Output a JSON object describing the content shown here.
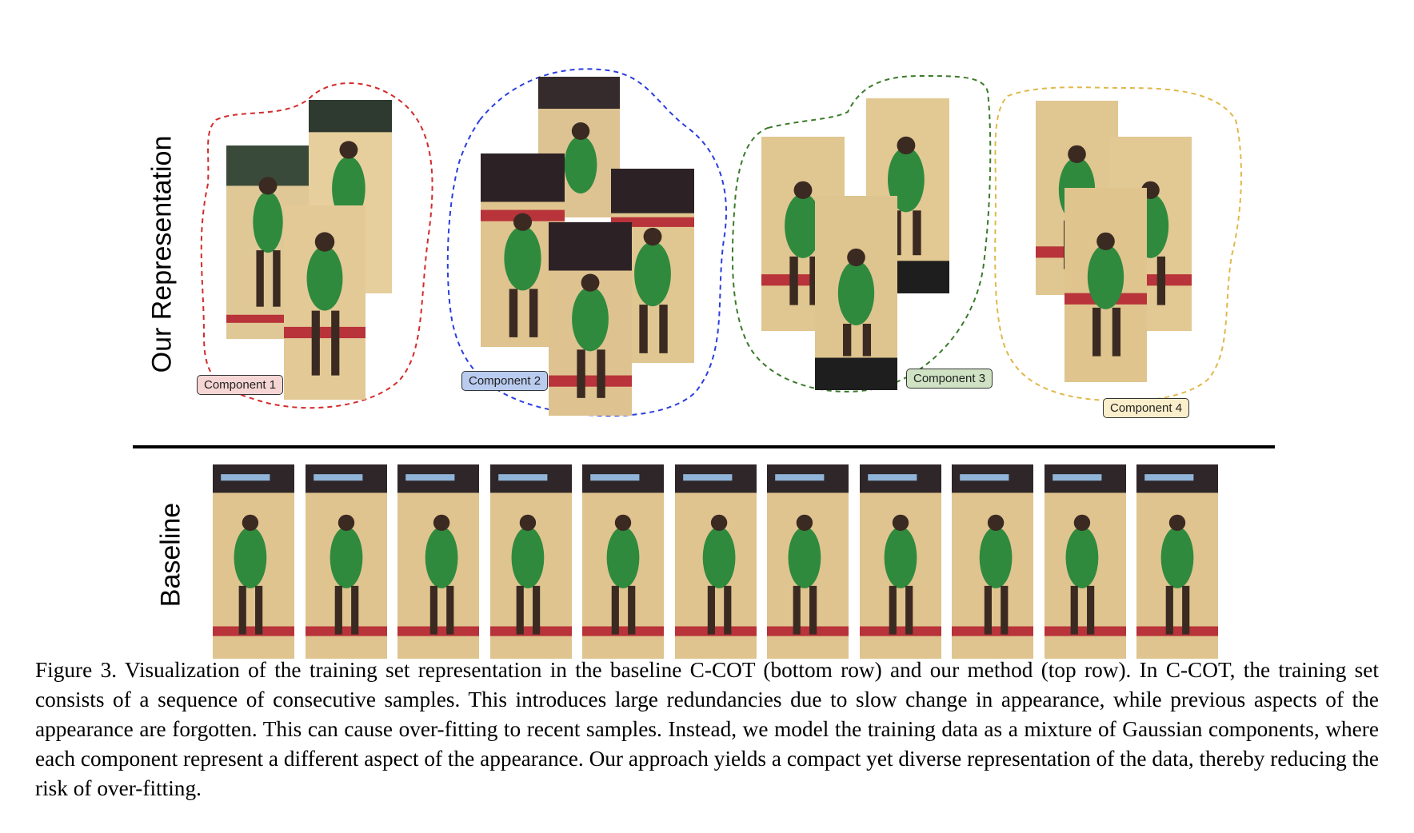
{
  "figure": {
    "top_row_label": "Our Representation",
    "bottom_row_label": "Baseline",
    "components": [
      {
        "label": "Component 1",
        "outline_color": "#d42a2a",
        "tag_bg": "#f6d6d4"
      },
      {
        "label": "Component 2",
        "outline_color": "#2a3ee0",
        "tag_bg": "#b9cbee"
      },
      {
        "label": "Component 3",
        "outline_color": "#3a7a2a",
        "tag_bg": "#cfe3c4"
      },
      {
        "label": "Component 4",
        "outline_color": "#e0b84a",
        "tag_bg": "#fbeecb"
      }
    ],
    "baseline_frame_count": 11
  },
  "caption": "Figure 3. Visualization of the training set representation in the baseline C-COT (bottom row) and our method (top row). In C-COT, the training set consists of a sequence of consecutive samples. This introduces large redundancies due to slow change in appearance, while previous aspects of the appearance are forgotten. This can cause over-fitting to recent samples. Instead, we model the training data as a mixture of Gaussian components, where each component represent a different aspect of the appearance. Our approach yields a compact yet diverse representation of the data, thereby reducing the risk of over-fitting."
}
